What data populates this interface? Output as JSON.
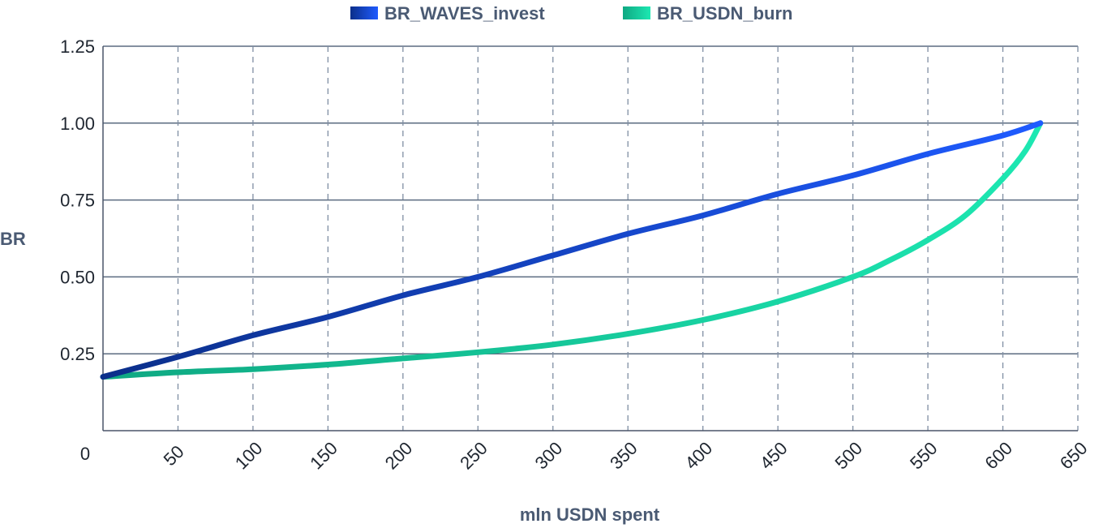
{
  "chart_data": {
    "type": "line",
    "title": "",
    "xlabel": "mln USDN spent",
    "ylabel": "BR",
    "x_ticks": [
      "50",
      "100",
      "150",
      "200",
      "250",
      "300",
      "350",
      "400",
      "450",
      "500",
      "550",
      "600",
      "650"
    ],
    "x_origin_label": "0",
    "y_ticks": [
      "0.25",
      "0.50",
      "0.75",
      "1.00",
      "1.25"
    ],
    "xlim": [
      0,
      650
    ],
    "ylim": [
      0,
      1.25
    ],
    "grid": {
      "x": "dashed",
      "y": "solid"
    },
    "legend_position": "top-center",
    "series": [
      {
        "name": "BR_WAVES_invest",
        "color_start": "#0b2f8a",
        "color_end": "#1f5bff",
        "x": [
          0,
          50,
          100,
          150,
          200,
          250,
          300,
          350,
          400,
          450,
          500,
          550,
          600,
          625
        ],
        "y": [
          0.175,
          0.24,
          0.31,
          0.37,
          0.44,
          0.5,
          0.57,
          0.64,
          0.7,
          0.77,
          0.83,
          0.9,
          0.96,
          1.0
        ]
      },
      {
        "name": "BR_USDN_burn",
        "color_start": "#0fa882",
        "color_end": "#1de8b2",
        "x": [
          0,
          50,
          100,
          150,
          200,
          250,
          300,
          350,
          400,
          450,
          500,
          525,
          550,
          575,
          600,
          615,
          625
        ],
        "y": [
          0.175,
          0.19,
          0.2,
          0.215,
          0.235,
          0.255,
          0.28,
          0.315,
          0.36,
          0.42,
          0.5,
          0.555,
          0.62,
          0.7,
          0.82,
          0.91,
          1.0
        ]
      }
    ]
  }
}
